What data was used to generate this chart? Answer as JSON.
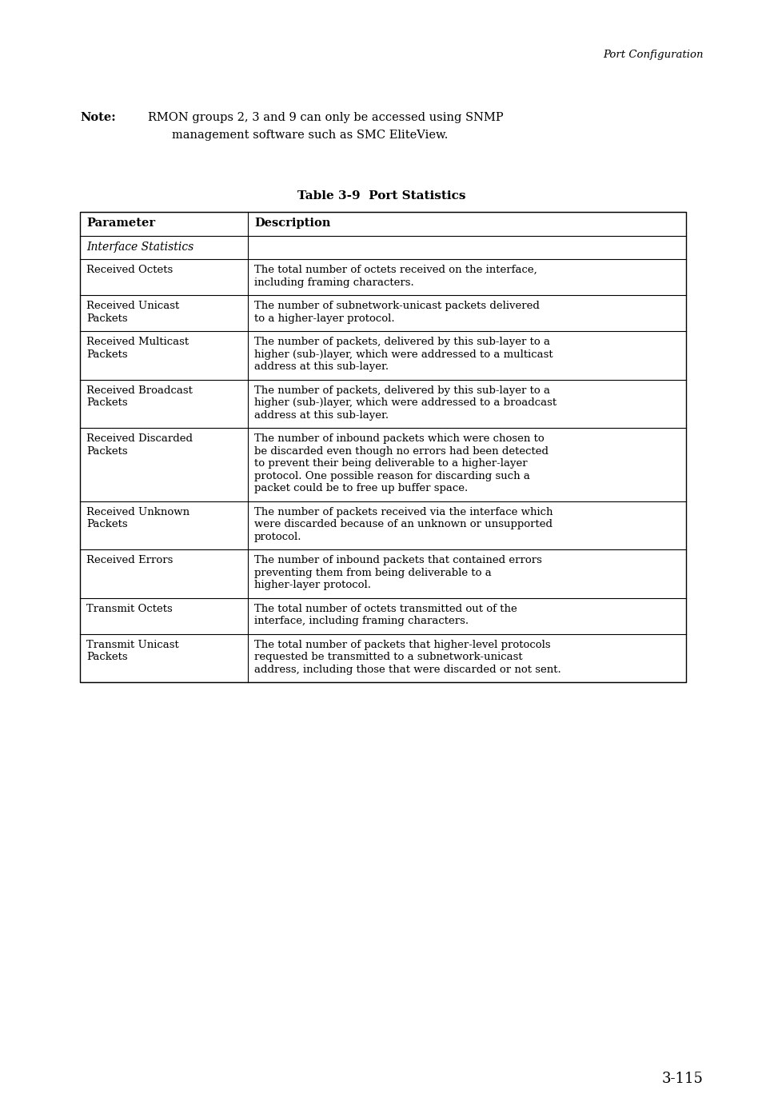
{
  "page_header": "Port Configuration",
  "note_bold": "Note:",
  "note_line1": "RMON groups 2, 3 and 9 can only be accessed using SNMP",
  "note_line2": "management software such as SMC EliteView.",
  "table_title": "Table 3-9  Port Statistics",
  "col_headers": [
    "Parameter",
    "Description"
  ],
  "section_row": "Interface Statistics",
  "rows": [
    {
      "param": "Received Octets",
      "desc": "The total number of octets received on the interface,\nincluding framing characters."
    },
    {
      "param": "Received Unicast\nPackets",
      "desc": "The number of subnetwork-unicast packets delivered\nto a higher-layer protocol."
    },
    {
      "param": "Received Multicast\nPackets",
      "desc": "The number of packets, delivered by this sub-layer to a\nhigher (sub-)layer, which were addressed to a multicast\naddress at this sub-layer."
    },
    {
      "param": "Received Broadcast\nPackets",
      "desc": "The number of packets, delivered by this sub-layer to a\nhigher (sub-)layer, which were addressed to a broadcast\naddress at this sub-layer."
    },
    {
      "param": "Received Discarded\nPackets",
      "desc": "The number of inbound packets which were chosen to\nbe discarded even though no errors had been detected\nto prevent their being deliverable to a higher-layer\nprotocol. One possible reason for discarding such a\npacket could be to free up buffer space."
    },
    {
      "param": "Received Unknown\nPackets",
      "desc": "The number of packets received via the interface which\nwere discarded because of an unknown or unsupported\nprotocol."
    },
    {
      "param": "Received Errors",
      "desc": "The number of inbound packets that contained errors\npreventing them from being deliverable to a\nhigher-layer protocol."
    },
    {
      "param": "Transmit Octets",
      "desc": "The total number of octets transmitted out of the\ninterface, including framing characters."
    },
    {
      "param": "Transmit Unicast\nPackets",
      "desc": "The total number of packets that higher-level protocols\nrequested be transmitted to a subnetwork-unicast\naddress, including those that were discarded or not sent."
    }
  ],
  "page_number": "3-115",
  "bg_color": "#ffffff",
  "text_color": "#000000"
}
